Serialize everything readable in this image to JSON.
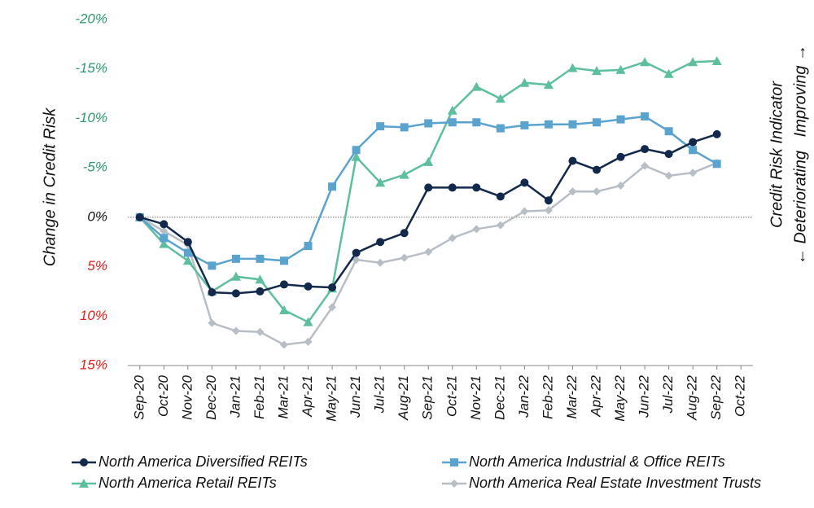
{
  "chart_data": {
    "type": "line",
    "y_label": "Change in Credit Risk",
    "y2_label": "Credit Risk Indicator",
    "y2_sublabel": "← Deteriorating   Improving →",
    "categories": [
      "Sep-20",
      "Oct-20",
      "Nov-20",
      "Dec-20",
      "Jan-21",
      "Feb-21",
      "Mar-21",
      "Apr-21",
      "May-21",
      "Jun-21",
      "Jul-21",
      "Aug-21",
      "Sep-21",
      "Oct-21",
      "Nov-21",
      "Dec-21",
      "Jan-22",
      "Feb-22",
      "Mar-22",
      "Apr-22",
      "May-22",
      "Jun-22",
      "Jul-22",
      "Aug-22",
      "Sep-22",
      "Oct-22"
    ],
    "ylim": [
      15,
      -20
    ],
    "yticks": [
      {
        "value": -20,
        "label": "-20%",
        "color": "#2e9a6b"
      },
      {
        "value": -15,
        "label": "-15%",
        "color": "#2e9a6b"
      },
      {
        "value": -10,
        "label": "-10%",
        "color": "#2e9a6b"
      },
      {
        "value": -5,
        "label": "-5%",
        "color": "#2e9a6b"
      },
      {
        "value": 0,
        "label": "0%",
        "color": "#111111"
      },
      {
        "value": 5,
        "label": "5%",
        "color": "#e0201b"
      },
      {
        "value": 10,
        "label": "10%",
        "color": "#e0201b"
      },
      {
        "value": 15,
        "label": "15%",
        "color": "#e0201b"
      }
    ],
    "series": [
      {
        "name": "North America Diversified REITs",
        "color": "#13294b",
        "marker": "circle",
        "values": [
          0,
          0.7,
          2.5,
          7.6,
          7.7,
          7.5,
          6.8,
          7.0,
          7.1,
          3.6,
          2.5,
          1.6,
          -3.0,
          -3.0,
          -3.0,
          -2.1,
          -3.5,
          -1.7,
          -5.7,
          -4.8,
          -6.1,
          -6.9,
          -6.4,
          -7.6,
          -8.4,
          null
        ]
      },
      {
        "name": "North America Industrial & Office REITs",
        "color": "#5ba3cf",
        "marker": "square",
        "values": [
          0,
          2.1,
          3.6,
          4.9,
          4.2,
          4.2,
          4.4,
          2.9,
          -3.1,
          -6.8,
          -9.2,
          -9.1,
          -9.5,
          -9.6,
          -9.6,
          -9.0,
          -9.3,
          -9.4,
          -9.4,
          -9.6,
          -9.9,
          -10.2,
          -8.7,
          -6.8,
          -5.4,
          null
        ]
      },
      {
        "name": "North America Retail REITs",
        "color": "#5dbf9f",
        "marker": "triangle",
        "values": [
          0,
          2.7,
          4.4,
          7.5,
          6.0,
          6.3,
          9.4,
          10.6,
          7.2,
          -6.1,
          -3.5,
          -4.3,
          -5.6,
          -10.8,
          -13.2,
          -12.0,
          -13.6,
          -13.4,
          -15.1,
          -14.8,
          -14.9,
          -15.7,
          -14.5,
          -15.7,
          -15.8,
          null
        ]
      },
      {
        "name": "North America Real Estate Investment Trusts",
        "color": "#b8bec6",
        "marker": "diamond",
        "values": [
          0,
          1.4,
          2.8,
          10.7,
          11.5,
          11.6,
          12.9,
          12.6,
          9.1,
          4.3,
          4.6,
          4.1,
          3.5,
          2.1,
          1.2,
          0.8,
          -0.6,
          -0.7,
          -2.6,
          -2.6,
          -3.2,
          -5.2,
          -4.2,
          -4.5,
          -5.5,
          null
        ]
      }
    ]
  }
}
